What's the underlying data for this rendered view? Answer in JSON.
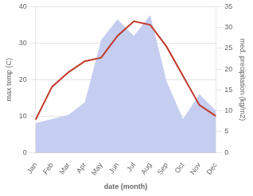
{
  "chart_data": {
    "type": "line",
    "categories": [
      "Jan",
      "Feb",
      "Mar",
      "Apr",
      "May",
      "Jun",
      "Jul",
      "Aug",
      "Sep",
      "Oct",
      "Nov",
      "Dec"
    ],
    "xlabel": "date (month)",
    "ylabel": "max temp (C)",
    "y2label": "med. precipitation (kg/m2)",
    "series": [
      {
        "type": "area",
        "axis": "y2",
        "color": "#c5cdf0",
        "values": [
          7,
          8,
          9,
          12,
          27,
          32,
          28,
          33,
          17,
          8,
          14,
          10
        ]
      },
      {
        "type": "line",
        "color": "#c0392b",
        "values": [
          9,
          18,
          22,
          25,
          26,
          32,
          36,
          35,
          29,
          21,
          13,
          10
        ]
      }
    ],
    "ylim": [
      0,
      40
    ],
    "yticks": [
      0,
      10,
      20,
      30,
      40
    ],
    "y2lim": [
      0,
      35
    ],
    "y2ticks": [
      0,
      5,
      10,
      15,
      20,
      25,
      30,
      35
    ],
    "grid": true
  }
}
